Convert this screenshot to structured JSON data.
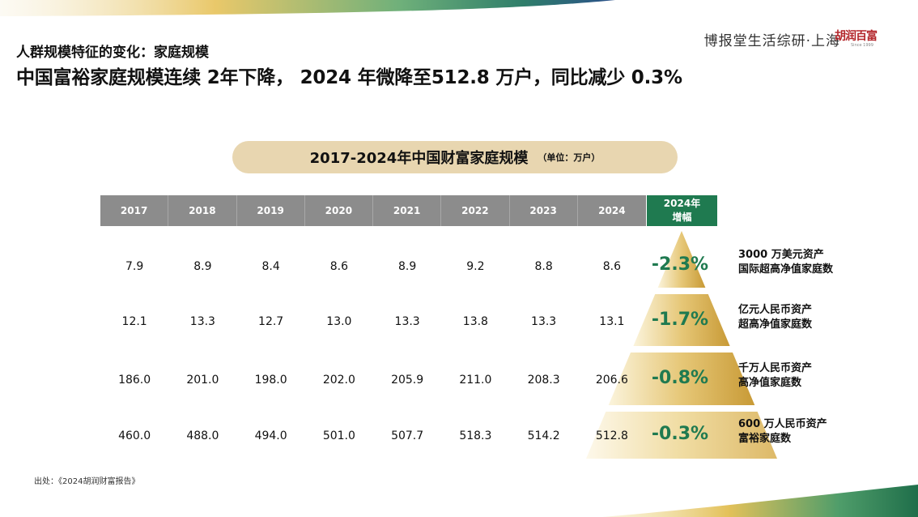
{
  "header": {
    "kicker": "人群规模特征的变化：家庭规模",
    "headline": "中国富裕家庭规模连续 2年下降， 2024 年微降至512.8 万户，同比减少 0.3%",
    "brand": "博报堂生活综研·上海",
    "logo_text": "胡润百富",
    "logo_subtext": "Since 1999"
  },
  "colors": {
    "header_gray": "#8c8c8c",
    "accent_green": "#1f7a50",
    "pill_tan": "#e8d6b0",
    "gold": "#d9b45a"
  },
  "chart_data": {
    "type": "table",
    "title": "2017-2024年中国财富家庭规模",
    "unit": "（单位：万户）",
    "columns": [
      "2017",
      "2018",
      "2019",
      "2020",
      "2021",
      "2022",
      "2023",
      "2024"
    ],
    "growth_header": "2024年增幅",
    "rows": [
      {
        "values": [
          "7.9",
          "8.9",
          "8.4",
          "8.6",
          "8.9",
          "9.2",
          "8.8",
          "8.6"
        ],
        "growth": "-2.3%",
        "label_line1": "3000 万美元资产",
        "label_line2": "国际超高净值家庭数"
      },
      {
        "values": [
          "12.1",
          "13.3",
          "12.7",
          "13.0",
          "13.3",
          "13.8",
          "13.3",
          "13.1"
        ],
        "growth": "-1.7%",
        "label_line1": "亿元人民币资产",
        "label_line2": "超高净值家庭数"
      },
      {
        "values": [
          "186.0",
          "201.0",
          "198.0",
          "202.0",
          "205.9",
          "211.0",
          "208.3",
          "206.6"
        ],
        "growth": "-0.8%",
        "label_line1": "千万人民币资产",
        "label_line2": "高净值家庭数"
      },
      {
        "values": [
          "460.0",
          "488.0",
          "494.0",
          "501.0",
          "507.7",
          "518.3",
          "514.2",
          "512.8"
        ],
        "growth": "-0.3%",
        "label_line1": "600 万人民币资产",
        "label_line2": "富裕家庭数"
      }
    ]
  },
  "source": "出处：《2024胡润财富报告》"
}
